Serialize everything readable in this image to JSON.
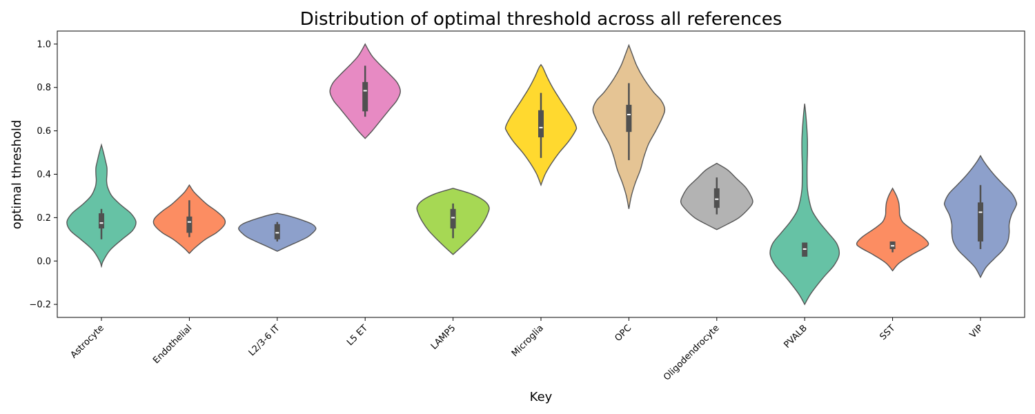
{
  "chart_data": {
    "type": "violin",
    "title": "Distribution of optimal threshold across all references",
    "xlabel": "Key",
    "ylabel": "optimal threshold",
    "ylim": [
      -0.26,
      1.06
    ],
    "yticks": [
      -0.2,
      0.0,
      0.2,
      0.4,
      0.6,
      0.8,
      1.0
    ],
    "ytick_labels": [
      "−0.2",
      "0.0",
      "0.2",
      "0.4",
      "0.6",
      "0.8",
      "1.0"
    ],
    "grid": false,
    "categories": [
      "Astrocyte",
      "Endothelial",
      "L2/3-6 IT",
      "L5 ET",
      "LAMP5",
      "Microglia",
      "OPC",
      "Oligodendrocyte",
      "PVALB",
      "SST",
      "VIP"
    ],
    "colors": [
      "#66c2a5",
      "#fc8d62",
      "#8da0cb",
      "#e78ac3",
      "#a6d854",
      "#ffd92f",
      "#e5c494",
      "#b3b3b3",
      "#66c2a5",
      "#fc8d62",
      "#8da0cb"
    ],
    "violins": [
      {
        "name": "Astrocyte",
        "min": -0.025,
        "max": 0.535,
        "profile": [
          [
            -0.025,
            0
          ],
          [
            0.0,
            0.05
          ],
          [
            0.05,
            0.25
          ],
          [
            0.1,
            0.6
          ],
          [
            0.14,
            0.9
          ],
          [
            0.18,
            1.0
          ],
          [
            0.22,
            0.85
          ],
          [
            0.26,
            0.55
          ],
          [
            0.3,
            0.3
          ],
          [
            0.34,
            0.18
          ],
          [
            0.37,
            0.15
          ],
          [
            0.4,
            0.16
          ],
          [
            0.43,
            0.16
          ],
          [
            0.46,
            0.12
          ],
          [
            0.5,
            0.06
          ],
          [
            0.535,
            0
          ]
        ],
        "width": 100,
        "whisker": [
          0.1,
          0.24
        ],
        "q1": 0.15,
        "median": 0.175,
        "q3": 0.22
      },
      {
        "name": "Endothelial",
        "min": 0.035,
        "max": 0.35,
        "profile": [
          [
            0.035,
            0
          ],
          [
            0.06,
            0.15
          ],
          [
            0.1,
            0.45
          ],
          [
            0.13,
            0.75
          ],
          [
            0.16,
            0.95
          ],
          [
            0.18,
            1.0
          ],
          [
            0.2,
            0.95
          ],
          [
            0.23,
            0.75
          ],
          [
            0.26,
            0.5
          ],
          [
            0.29,
            0.3
          ],
          [
            0.32,
            0.12
          ],
          [
            0.35,
            0
          ]
        ],
        "width": 104,
        "whisker": [
          0.11,
          0.28
        ],
        "q1": 0.13,
        "median": 0.18,
        "q3": 0.205
      },
      {
        "name": "L2/3-6 IT",
        "min": 0.045,
        "max": 0.22,
        "profile": [
          [
            0.045,
            0
          ],
          [
            0.07,
            0.3
          ],
          [
            0.09,
            0.55
          ],
          [
            0.11,
            0.78
          ],
          [
            0.13,
            0.92
          ],
          [
            0.15,
            1.0
          ],
          [
            0.17,
            0.9
          ],
          [
            0.19,
            0.62
          ],
          [
            0.21,
            0.25
          ],
          [
            0.22,
            0
          ]
        ],
        "width": 112,
        "whisker": [
          0.09,
          0.18
        ],
        "q1": 0.1,
        "median": 0.13,
        "q3": 0.17
      },
      {
        "name": "L5 ET",
        "min": 0.565,
        "max": 1.0,
        "profile": [
          [
            0.565,
            0
          ],
          [
            0.6,
            0.2
          ],
          [
            0.65,
            0.45
          ],
          [
            0.7,
            0.7
          ],
          [
            0.74,
            0.9
          ],
          [
            0.78,
            1.0
          ],
          [
            0.82,
            0.92
          ],
          [
            0.86,
            0.7
          ],
          [
            0.9,
            0.45
          ],
          [
            0.94,
            0.22
          ],
          [
            0.97,
            0.1
          ],
          [
            1.0,
            0
          ]
        ],
        "width": 102,
        "whisker": [
          0.665,
          0.9
        ],
        "q1": 0.69,
        "median": 0.785,
        "q3": 0.825
      },
      {
        "name": "LAMP5",
        "min": 0.03,
        "max": 0.335,
        "profile": [
          [
            0.03,
            0
          ],
          [
            0.06,
            0.2
          ],
          [
            0.1,
            0.45
          ],
          [
            0.14,
            0.68
          ],
          [
            0.18,
            0.85
          ],
          [
            0.22,
            0.97
          ],
          [
            0.25,
            1.0
          ],
          [
            0.28,
            0.85
          ],
          [
            0.31,
            0.5
          ],
          [
            0.335,
            0
          ]
        ],
        "width": 104,
        "whisker": [
          0.105,
          0.265
        ],
        "q1": 0.15,
        "median": 0.2,
        "q3": 0.24
      },
      {
        "name": "Microglia",
        "min": 0.35,
        "max": 0.905,
        "profile": [
          [
            0.35,
            0
          ],
          [
            0.4,
            0.12
          ],
          [
            0.45,
            0.3
          ],
          [
            0.5,
            0.52
          ],
          [
            0.55,
            0.78
          ],
          [
            0.6,
            0.98
          ],
          [
            0.62,
            1.0
          ],
          [
            0.66,
            0.88
          ],
          [
            0.7,
            0.72
          ],
          [
            0.75,
            0.52
          ],
          [
            0.8,
            0.33
          ],
          [
            0.85,
            0.17
          ],
          [
            0.89,
            0.06
          ],
          [
            0.905,
            0
          ]
        ],
        "width": 102,
        "whisker": [
          0.475,
          0.775
        ],
        "q1": 0.57,
        "median": 0.615,
        "q3": 0.695
      },
      {
        "name": "OPC",
        "min": 0.24,
        "max": 0.995,
        "profile": [
          [
            0.24,
            0
          ],
          [
            0.3,
            0.07
          ],
          [
            0.36,
            0.18
          ],
          [
            0.42,
            0.32
          ],
          [
            0.48,
            0.42
          ],
          [
            0.54,
            0.55
          ],
          [
            0.6,
            0.75
          ],
          [
            0.66,
            0.93
          ],
          [
            0.7,
            1.0
          ],
          [
            0.74,
            0.9
          ],
          [
            0.78,
            0.68
          ],
          [
            0.84,
            0.42
          ],
          [
            0.9,
            0.22
          ],
          [
            0.96,
            0.08
          ],
          [
            0.995,
            0
          ]
        ],
        "width": 104,
        "whisker": [
          0.465,
          0.82
        ],
        "q1": 0.595,
        "median": 0.675,
        "q3": 0.72
      },
      {
        "name": "Oligodendrocyte",
        "min": 0.145,
        "max": 0.45,
        "profile": [
          [
            0.145,
            0
          ],
          [
            0.17,
            0.3
          ],
          [
            0.2,
            0.62
          ],
          [
            0.24,
            0.88
          ],
          [
            0.27,
            1.0
          ],
          [
            0.3,
            0.95
          ],
          [
            0.34,
            0.8
          ],
          [
            0.38,
            0.55
          ],
          [
            0.42,
            0.3
          ],
          [
            0.45,
            0
          ]
        ],
        "width": 104,
        "whisker": [
          0.215,
          0.385
        ],
        "q1": 0.245,
        "median": 0.285,
        "q3": 0.335
      },
      {
        "name": "PVALB",
        "min": -0.2,
        "max": 0.725,
        "profile": [
          [
            -0.2,
            0
          ],
          [
            -0.15,
            0.18
          ],
          [
            -0.08,
            0.52
          ],
          [
            -0.02,
            0.85
          ],
          [
            0.03,
            1.0
          ],
          [
            0.08,
            0.93
          ],
          [
            0.13,
            0.68
          ],
          [
            0.18,
            0.42
          ],
          [
            0.23,
            0.22
          ],
          [
            0.28,
            0.13
          ],
          [
            0.33,
            0.08
          ],
          [
            0.38,
            0.07
          ],
          [
            0.44,
            0.07
          ],
          [
            0.5,
            0.08
          ],
          [
            0.56,
            0.08
          ],
          [
            0.62,
            0.06
          ],
          [
            0.68,
            0.03
          ],
          [
            0.725,
            0
          ]
        ],
        "width": 100,
        "whisker": [
          0.02,
          0.085
        ],
        "q1": 0.02,
        "median": 0.055,
        "q3": 0.085
      },
      {
        "name": "SST",
        "min": -0.045,
        "max": 0.335,
        "profile": [
          [
            -0.045,
            0
          ],
          [
            -0.01,
            0.18
          ],
          [
            0.03,
            0.55
          ],
          [
            0.06,
            0.88
          ],
          [
            0.08,
            1.0
          ],
          [
            0.11,
            0.85
          ],
          [
            0.15,
            0.5
          ],
          [
            0.18,
            0.28
          ],
          [
            0.21,
            0.2
          ],
          [
            0.24,
            0.19
          ],
          [
            0.27,
            0.17
          ],
          [
            0.3,
            0.11
          ],
          [
            0.335,
            0
          ]
        ],
        "width": 104,
        "whisker": [
          0.04,
          0.09
        ],
        "q1": 0.055,
        "median": 0.07,
        "q3": 0.09
      },
      {
        "name": "VIP",
        "min": -0.075,
        "max": 0.485,
        "profile": [
          [
            -0.075,
            0
          ],
          [
            -0.03,
            0.15
          ],
          [
            0.01,
            0.38
          ],
          [
            0.05,
            0.62
          ],
          [
            0.09,
            0.76
          ],
          [
            0.13,
            0.8
          ],
          [
            0.17,
            0.8
          ],
          [
            0.21,
            0.86
          ],
          [
            0.25,
            0.98
          ],
          [
            0.27,
            1.0
          ],
          [
            0.31,
            0.88
          ],
          [
            0.35,
            0.65
          ],
          [
            0.39,
            0.42
          ],
          [
            0.43,
            0.22
          ],
          [
            0.46,
            0.09
          ],
          [
            0.485,
            0
          ]
        ],
        "width": 104,
        "whisker": [
          0.055,
          0.35
        ],
        "q1": 0.09,
        "median": 0.225,
        "q3": 0.27
      }
    ]
  }
}
